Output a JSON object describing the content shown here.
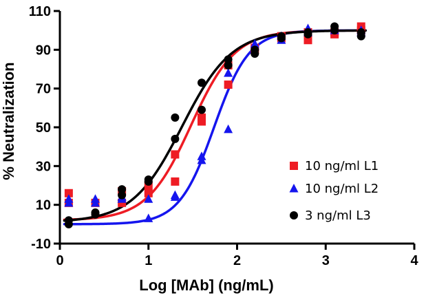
{
  "chart_data": {
    "type": "scatter",
    "title": "",
    "xlabel": "Log [MAb] (ng/mL)",
    "ylabel": "% Neutralization",
    "xlim": [
      0,
      4
    ],
    "ylim": [
      -10,
      110
    ],
    "xticks": [
      "0",
      "1",
      "2",
      "3",
      "4"
    ],
    "yticks": [
      "-10",
      "10",
      "30",
      "50",
      "70",
      "90",
      "110"
    ],
    "grid": false,
    "legend_position": "right",
    "series": [
      {
        "name": "10 ng/ml L1",
        "color": "#ee1c24",
        "marker": "square",
        "points": [
          [
            0.1,
            16
          ],
          [
            0.1,
            11
          ],
          [
            0.4,
            11
          ],
          [
            0.7,
            11
          ],
          [
            0.7,
            17
          ],
          [
            1.0,
            16
          ],
          [
            1.0,
            20
          ],
          [
            1.3,
            22
          ],
          [
            1.3,
            36
          ],
          [
            1.6,
            53
          ],
          [
            1.6,
            55
          ],
          [
            1.9,
            72
          ],
          [
            1.9,
            82
          ],
          [
            2.2,
            90
          ],
          [
            2.2,
            91
          ],
          [
            2.5,
            96
          ],
          [
            2.5,
            97
          ],
          [
            2.8,
            95
          ],
          [
            2.8,
            99
          ],
          [
            3.1,
            98
          ],
          [
            3.1,
            99
          ],
          [
            3.4,
            100
          ],
          [
            3.4,
            102
          ]
        ],
        "curve": {
          "model": "4PL",
          "bottom": 2,
          "top": 100,
          "logEC50": 1.48,
          "hill": 1.75
        }
      },
      {
        "name": "10 ng/ml L2",
        "color": "#1515ee",
        "marker": "triangle",
        "points": [
          [
            0.1,
            11
          ],
          [
            0.1,
            13
          ],
          [
            0.4,
            11
          ],
          [
            0.4,
            13
          ],
          [
            0.7,
            13
          ],
          [
            0.7,
            14
          ],
          [
            1.0,
            3
          ],
          [
            1.0,
            13
          ],
          [
            1.3,
            14
          ],
          [
            1.3,
            15
          ],
          [
            1.6,
            33
          ],
          [
            1.6,
            35
          ],
          [
            1.9,
            49
          ],
          [
            1.9,
            78
          ],
          [
            2.2,
            92
          ],
          [
            2.2,
            93
          ],
          [
            2.5,
            95
          ],
          [
            2.5,
            97
          ],
          [
            2.8,
            99
          ],
          [
            2.8,
            101
          ],
          [
            3.1,
            100
          ],
          [
            3.1,
            101
          ],
          [
            3.4,
            99
          ],
          [
            3.4,
            100
          ]
        ],
        "curve": {
          "model": "4PL",
          "bottom": 0,
          "top": 100,
          "logEC50": 1.74,
          "hill": 2.2
        }
      },
      {
        "name": "3 ng/ml L3",
        "color": "#000000",
        "marker": "circle",
        "points": [
          [
            0.1,
            0
          ],
          [
            0.1,
            2
          ],
          [
            0.4,
            5
          ],
          [
            0.4,
            6
          ],
          [
            0.7,
            15
          ],
          [
            0.7,
            18
          ],
          [
            1.0,
            22
          ],
          [
            1.0,
            23
          ],
          [
            1.3,
            44
          ],
          [
            1.3,
            55
          ],
          [
            1.6,
            59
          ],
          [
            1.6,
            73
          ],
          [
            1.9,
            82
          ],
          [
            1.9,
            85
          ],
          [
            2.2,
            88
          ],
          [
            2.2,
            90
          ],
          [
            2.5,
            96
          ],
          [
            2.5,
            97
          ],
          [
            2.8,
            98
          ],
          [
            2.8,
            99
          ],
          [
            3.1,
            100
          ],
          [
            3.1,
            102
          ],
          [
            3.4,
            97
          ],
          [
            3.4,
            99
          ]
        ],
        "curve": {
          "model": "4PL",
          "bottom": 1,
          "top": 100,
          "logEC50": 1.38,
          "hill": 1.55
        }
      }
    ]
  }
}
